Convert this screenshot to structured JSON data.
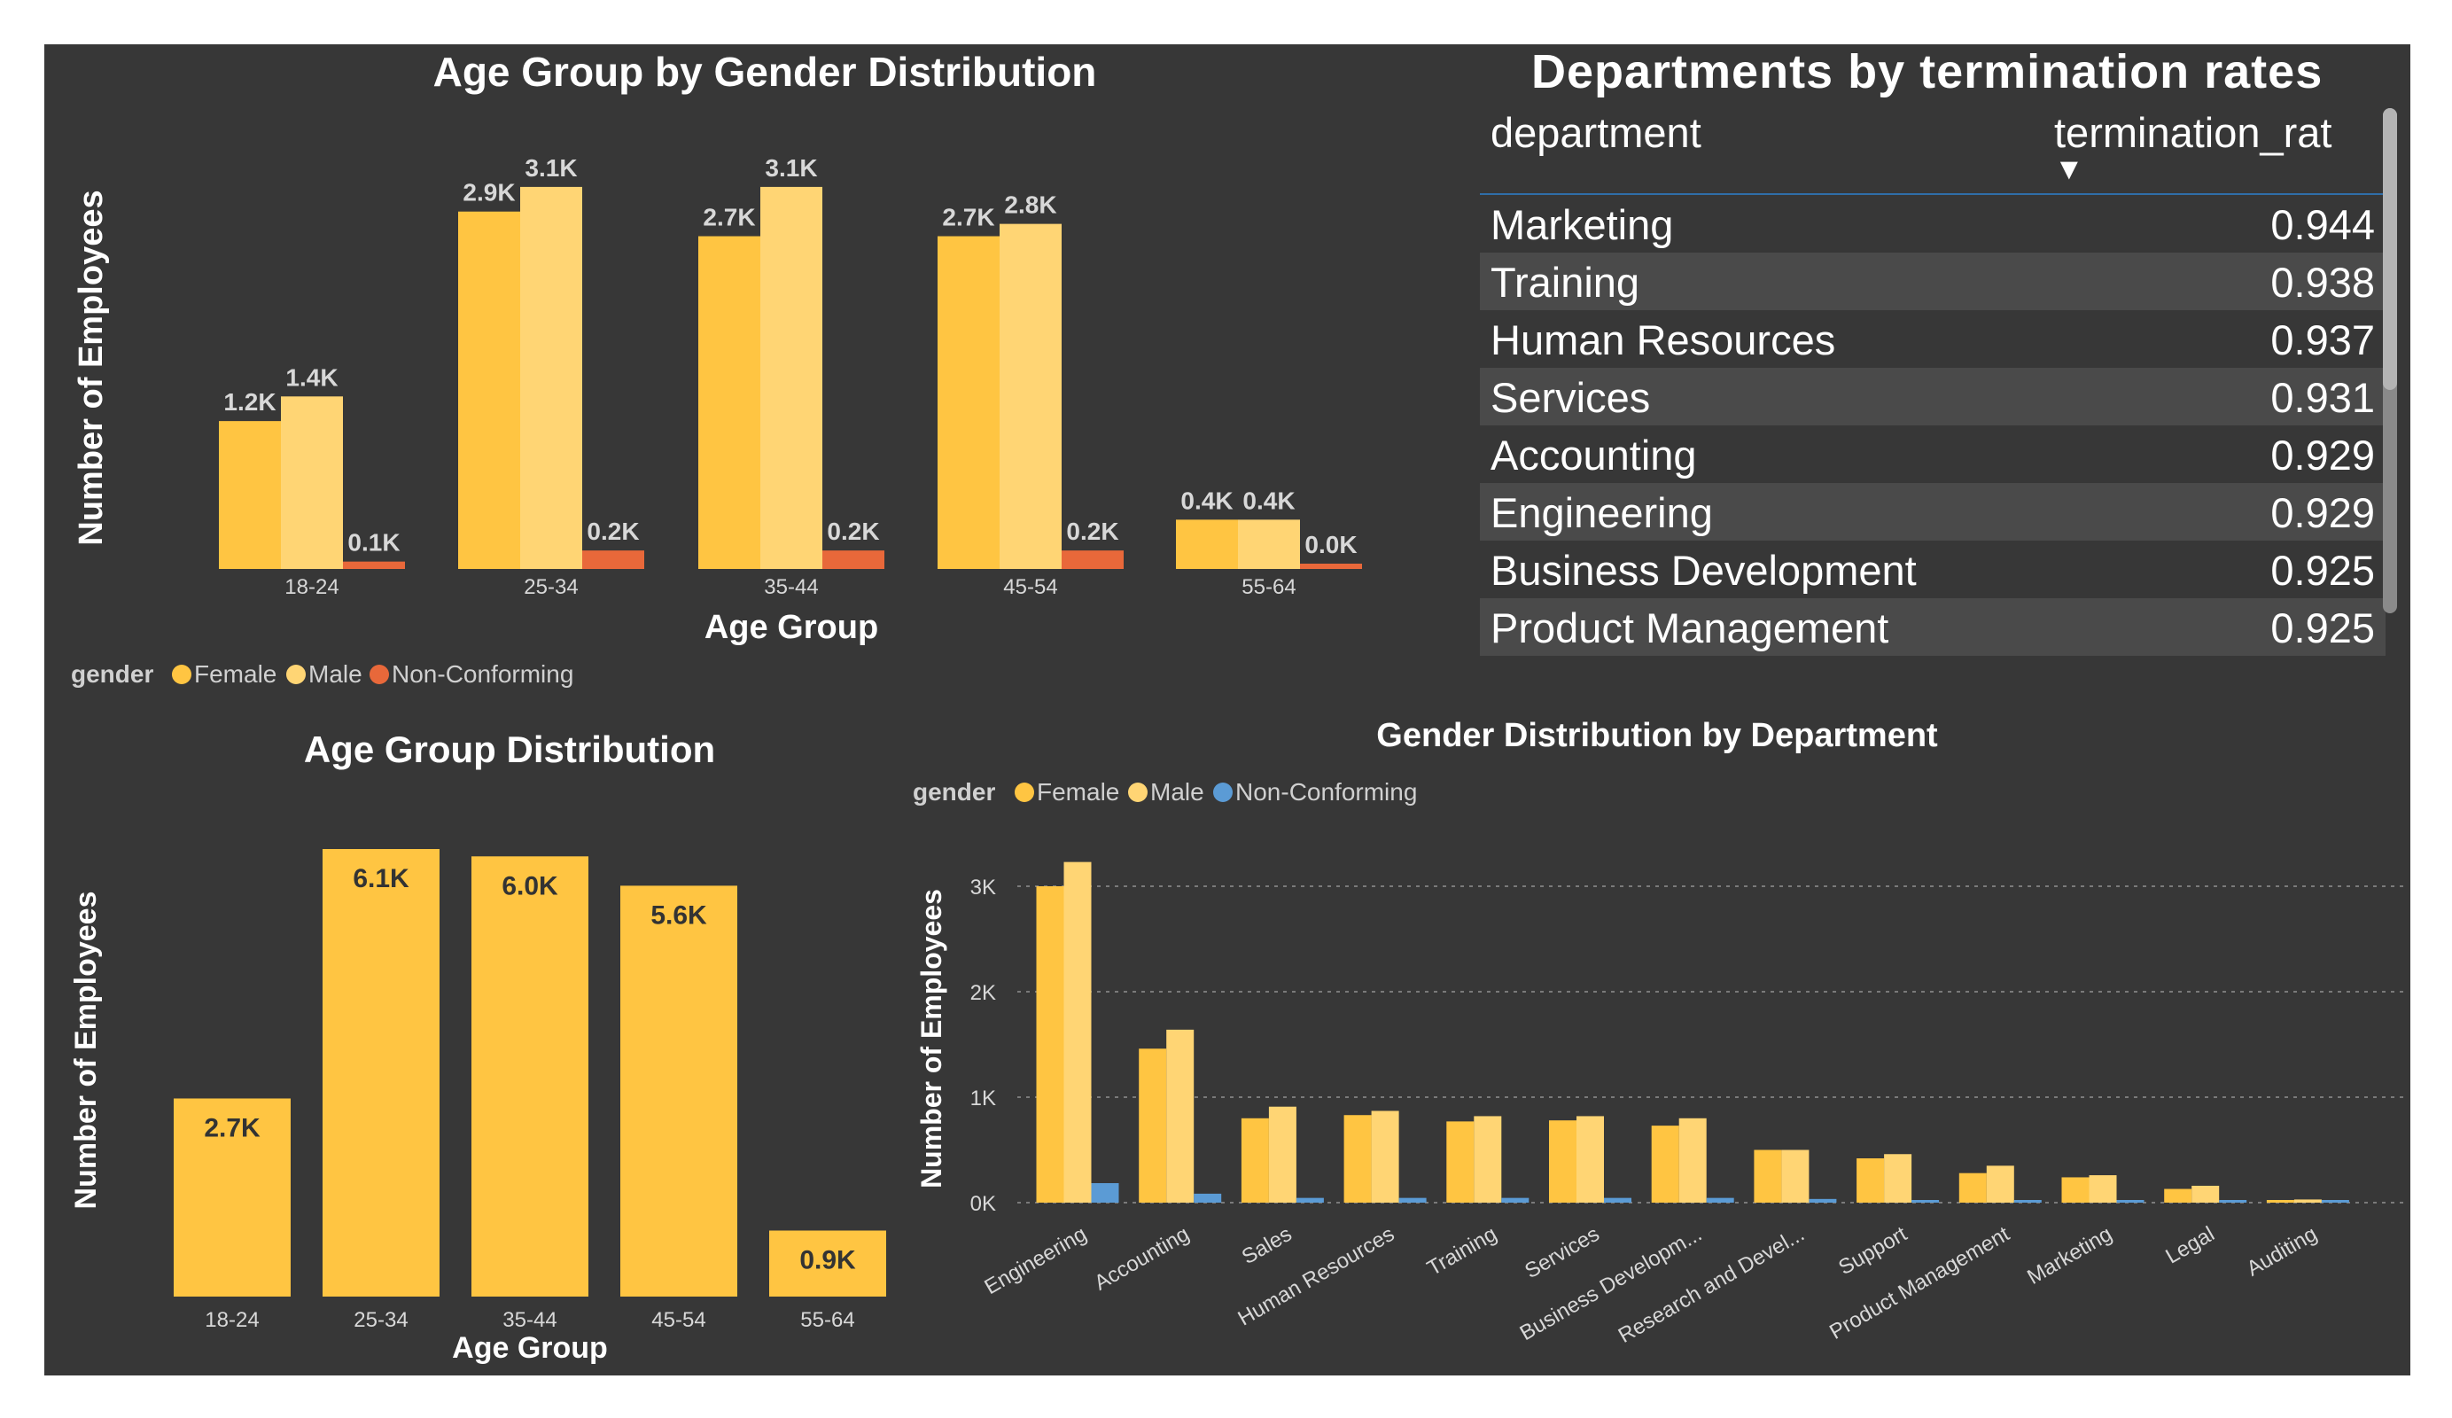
{
  "colors": {
    "background": "#373737",
    "female": "#FFC542",
    "male": "#FFD574",
    "non_conforming_top": "#E8683A",
    "non_conforming_bottom": "#5B9BD5",
    "text": "#FFFFFF",
    "axis_text": "#E6E6E6",
    "rule": "#2F6EA8"
  },
  "table": {
    "title": "Departments by termination rates",
    "columns": [
      "department",
      "termination_rat"
    ],
    "rows": [
      {
        "department": "Marketing",
        "value": "0.944"
      },
      {
        "department": "Training",
        "value": "0.938"
      },
      {
        "department": "Human Resources",
        "value": "0.937"
      },
      {
        "department": "Services",
        "value": "0.931"
      },
      {
        "department": "Accounting",
        "value": "0.929"
      },
      {
        "department": "Engineering",
        "value": "0.929"
      },
      {
        "department": "Business Development",
        "value": "0.925"
      },
      {
        "department": "Product Management",
        "value": "0.925"
      }
    ]
  },
  "chart_data": [
    {
      "type": "bar",
      "title": "Age Group by Gender Distribution",
      "xlabel": "Age Group",
      "ylabel": "Number of Employees",
      "legend_title": "gender",
      "legend_position": "bottom-left",
      "categories": [
        "18-24",
        "25-34",
        "35-44",
        "45-54",
        "55-64"
      ],
      "series": [
        {
          "name": "Female",
          "values": [
            1200,
            2900,
            2700,
            2700,
            400
          ],
          "labels": [
            "1.2K",
            "2.9K",
            "2.7K",
            "2.7K",
            "0.4K"
          ]
        },
        {
          "name": "Male",
          "values": [
            1400,
            3100,
            3100,
            2800,
            400
          ],
          "labels": [
            "1.4K",
            "3.1K",
            "3.1K",
            "2.8K",
            "0.4K"
          ]
        },
        {
          "name": "Non-Conforming",
          "values": [
            60,
            150,
            150,
            150,
            20
          ],
          "labels": [
            "0.1K",
            "0.2K",
            "0.2K",
            "0.2K",
            "0.0K"
          ]
        }
      ],
      "ylim": [
        0,
        3200
      ],
      "grid": false
    },
    {
      "type": "bar",
      "title": "Age Group Distribution",
      "xlabel": "Age Group",
      "ylabel": "Number of Employees",
      "categories": [
        "18-24",
        "25-34",
        "35-44",
        "45-54",
        "55-64"
      ],
      "values": [
        2700,
        6100,
        6000,
        5600,
        900
      ],
      "labels": [
        "2.7K",
        "6.1K",
        "6.0K",
        "5.6K",
        "0.9K"
      ],
      "ylim": [
        0,
        6200
      ],
      "grid": false
    },
    {
      "type": "bar",
      "title": "Gender Distribution by Department",
      "xlabel": "",
      "ylabel": "Number of Employees",
      "legend_title": "gender",
      "legend_position": "top-left",
      "categories": [
        "Engineering",
        "Accounting",
        "Sales",
        "Human Resources",
        "Training",
        "Services",
        "Business Developm...",
        "Research and Devel...",
        "Support",
        "Product Management",
        "Marketing",
        "Legal",
        "Auditing"
      ],
      "series": [
        {
          "name": "Female",
          "values": [
            3000,
            1460,
            800,
            830,
            770,
            780,
            730,
            500,
            420,
            280,
            240,
            130,
            25
          ]
        },
        {
          "name": "Male",
          "values": [
            3230,
            1640,
            910,
            870,
            820,
            820,
            800,
            500,
            460,
            350,
            260,
            160,
            30
          ]
        },
        {
          "name": "Non-Conforming",
          "values": [
            185,
            85,
            45,
            45,
            45,
            45,
            45,
            35,
            25,
            20,
            15,
            10,
            3
          ]
        }
      ],
      "yticks": [
        "0K",
        "1K",
        "2K",
        "3K"
      ],
      "ylim": [
        0,
        3400
      ],
      "grid": true
    }
  ]
}
